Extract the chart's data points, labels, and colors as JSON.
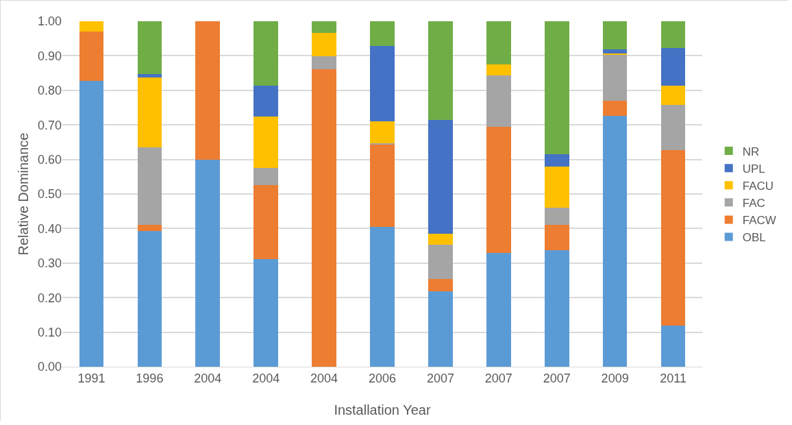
{
  "chart_data": {
    "type": "bar",
    "stacked": true,
    "xlabel": "Installation Year",
    "ylabel": "Relative Dominance",
    "categories": [
      "1991",
      "1996",
      "2004",
      "2004",
      "2004",
      "2006",
      "2007",
      "2007",
      "2007",
      "2009",
      "2011"
    ],
    "series": [
      {
        "name": "OBL",
        "color": "#5b9bd5",
        "values": [
          0.827,
          0.393,
          0.6,
          0.312,
          0,
          0.405,
          0.219,
          0.329,
          0.338,
          0.727,
          0.12
        ]
      },
      {
        "name": "FACW",
        "color": "#ed7d31",
        "values": [
          0.143,
          0.017,
          0.4,
          0.213,
          0.862,
          0.238,
          0.034,
          0.366,
          0.072,
          0.043,
          0.507
        ]
      },
      {
        "name": "FAC",
        "color": "#a5a5a5",
        "values": [
          0,
          0.225,
          0,
          0.05,
          0.036,
          0.003,
          0.1,
          0.149,
          0.05,
          0.132,
          0.13
        ]
      },
      {
        "name": "FACU",
        "color": "#ffc000",
        "values": [
          0.03,
          0.203,
          0,
          0.15,
          0.068,
          0.064,
          0.031,
          0.032,
          0.12,
          0.004,
          0.056
        ]
      },
      {
        "name": "UPL",
        "color": "#4472c4",
        "values": [
          0,
          0.01,
          0,
          0.088,
          0,
          0.218,
          0.331,
          0,
          0.035,
          0.012,
          0.109
        ]
      },
      {
        "name": "NR",
        "color": "#70ad47",
        "values": [
          0,
          0.152,
          0,
          0.187,
          0.034,
          0.072,
          0.285,
          0.124,
          0.385,
          0.082,
          0.078
        ]
      }
    ],
    "ylim": [
      0,
      1
    ],
    "yticks": [
      {
        "value": 0,
        "label": "0.00"
      },
      {
        "value": 0.1,
        "label": "0.10"
      },
      {
        "value": 0.2,
        "label": "0.20"
      },
      {
        "value": 0.3,
        "label": "0.30"
      },
      {
        "value": 0.4,
        "label": "0.40"
      },
      {
        "value": 0.5,
        "label": "0.50"
      },
      {
        "value": 0.6,
        "label": "0.60"
      },
      {
        "value": 0.7,
        "label": "0.70"
      },
      {
        "value": 0.8,
        "label": "0.80"
      },
      {
        "value": 0.9,
        "label": "0.90"
      },
      {
        "value": 1,
        "label": "1.00"
      }
    ],
    "grid": "y",
    "legend": "right"
  }
}
